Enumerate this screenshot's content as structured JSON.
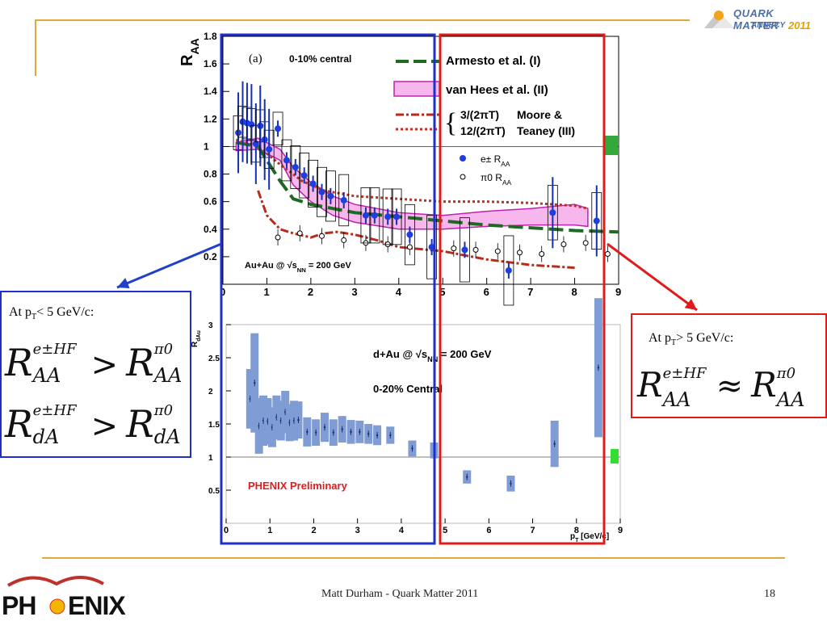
{
  "slide": {
    "footer_text": "Matt Durham - Quark Matter 2011",
    "page_number": "18",
    "logo_top": {
      "line1": "QUARK MATTER",
      "line2": "ANNECY",
      "year": "2011"
    },
    "logo_bottom": {
      "left": "PH",
      "right": "ENIX"
    }
  },
  "left_box": {
    "label": "At p",
    "label_sub": "T",
    "label_rest": "< 5 GeV/c:",
    "eq1": {
      "lhs": "R",
      "lhs_sup": "e±HF",
      "lhs_sub": "AA",
      "op": ">",
      "rhs": "R",
      "rhs_sup": "π0",
      "rhs_sub": "AA"
    },
    "eq2": {
      "lhs": "R",
      "lhs_sup": "e±HF",
      "lhs_sub": "dA",
      "op": ">",
      "rhs": "R",
      "rhs_sup": "π0",
      "rhs_sub": "dA"
    }
  },
  "right_box": {
    "label": "At p",
    "label_sub": "T",
    "label_rest": "> 5 GeV/c:",
    "eq": {
      "lhs": "R",
      "lhs_sup": "e±HF",
      "lhs_sub": "AA",
      "op": "≈",
      "rhs": "R",
      "rhs_sup": "π0",
      "rhs_sub": "AA"
    }
  },
  "colors": {
    "accent_line": "#e0a93b",
    "blue_box": "#1f2fcc",
    "red_box": "#e01b1b",
    "arrow_blue": "#1f3fcc",
    "arrow_red": "#e01b1b"
  },
  "chart_data": [
    {
      "type": "scatter",
      "panel_label": "(a)",
      "centrality": "0-10% central",
      "ylabel": "R",
      "ylabel_sub": "AA",
      "xlim": [
        0,
        9
      ],
      "ylim": [
        0,
        1.8
      ],
      "xticks": [
        "0",
        "1",
        "2",
        "3",
        "4",
        "5",
        "6",
        "7",
        "8",
        "9"
      ],
      "yticks": [
        "0.2",
        "0.4",
        "0.6",
        "0.8",
        "1",
        "1.2",
        "1.4",
        "1.6",
        "1.8"
      ],
      "system_label": "Au+Au @ √s",
      "system_label_sub": "NN",
      "system_label_rest": " = 200 GeV",
      "legend": {
        "armesto": "Armesto et al. (I)",
        "vanhees": "van Hees et al. (II)",
        "moore_a": "3/(2πT)",
        "moore_b": "12/(2πT)",
        "moore_name1": "Moore &",
        "moore_name2": "Teaney (III)",
        "e_raa": "e± R",
        "e_raa_sub": "AA",
        "pi_raa": "π0 R",
        "pi_raa_sub": "AA"
      },
      "series": [
        {
          "name": "e± RAA",
          "x": [
            0.35,
            0.45,
            0.55,
            0.65,
            0.75,
            0.85,
            0.95,
            1.05,
            1.25,
            1.45,
            1.65,
            1.85,
            2.05,
            2.25,
            2.45,
            2.75,
            3.25,
            3.45,
            3.75,
            3.95,
            4.25,
            4.75,
            5.5,
            6.5,
            7.5,
            8.5
          ],
          "y": [
            1.1,
            1.18,
            1.17,
            1.16,
            1.02,
            1.15,
            1.05,
            0.98,
            1.13,
            0.9,
            0.85,
            0.79,
            0.73,
            0.67,
            0.64,
            0.61,
            0.5,
            0.5,
            0.49,
            0.49,
            0.36,
            0.27,
            0.25,
            0.1,
            0.52,
            0.46
          ]
        },
        {
          "name": "π0 RAA",
          "x": [
            1.25,
            1.75,
            2.25,
            2.75,
            3.25,
            3.75,
            4.25,
            4.75,
            5.25,
            5.75,
            6.25,
            6.75,
            7.25,
            7.75,
            8.25,
            8.75
          ],
          "y": [
            0.34,
            0.37,
            0.35,
            0.32,
            0.3,
            0.29,
            0.27,
            0.27,
            0.26,
            0.25,
            0.24,
            0.23,
            0.22,
            0.29,
            0.3,
            0.22
          ]
        },
        {
          "name": "Armesto et al. (I)",
          "x": [
            0.3,
            0.8,
            1.3,
            1.6,
            2.0,
            2.5,
            3.0,
            4.0,
            5.0,
            6.0,
            7.0,
            8.0,
            9.0
          ],
          "y": [
            1.03,
            1.0,
            0.75,
            0.62,
            0.58,
            0.55,
            0.52,
            0.49,
            0.46,
            0.43,
            0.41,
            0.39,
            0.38
          ]
        },
        {
          "name": "3/(2πT)",
          "x": [
            0.8,
            1.0,
            1.3,
            1.6,
            2.0,
            2.3,
            2.6,
            3.0,
            3.5,
            4.0,
            5.0,
            6.0,
            7.0,
            8.0
          ],
          "y": [
            0.68,
            0.5,
            0.4,
            0.37,
            0.34,
            0.37,
            0.38,
            0.36,
            0.32,
            0.27,
            0.24,
            0.18,
            0.14,
            0.12
          ]
        },
        {
          "name": "12/(2πT)",
          "x": [
            0.3,
            0.8,
            1.3,
            1.8,
            2.3,
            3.0,
            4.0,
            5.0,
            6.0,
            7.0,
            8.0,
            8.3
          ],
          "y": [
            1.05,
            1.0,
            0.87,
            0.75,
            0.68,
            0.64,
            0.62,
            0.6,
            0.6,
            0.59,
            0.57,
            0.55
          ]
        },
        {
          "name": "van Hees et al. (II)",
          "x": [
            0.3,
            0.8,
            1.3,
            1.6,
            2.0,
            2.5,
            3.0,
            4.0,
            5.0,
            6.0,
            7.0,
            8.0,
            8.3
          ],
          "y_low": [
            0.97,
            0.98,
            0.9,
            0.72,
            0.6,
            0.5,
            0.45,
            0.4,
            0.4,
            0.42,
            0.43,
            0.43,
            0.42
          ],
          "y_high": [
            1.03,
            1.06,
            0.98,
            0.85,
            0.74,
            0.64,
            0.58,
            0.52,
            0.5,
            0.53,
            0.55,
            0.58,
            0.55
          ]
        }
      ]
    },
    {
      "type": "scatter",
      "ylabel": "R",
      "ylabel_sub": "dAu",
      "xlabel": "p",
      "xlabel_sub": "T",
      "xlabel_rest": " [GeV/c]",
      "xlim": [
        0,
        9
      ],
      "ylim": [
        0,
        3
      ],
      "xticks": [
        "0",
        "1",
        "2",
        "3",
        "4",
        "5",
        "6",
        "7",
        "8",
        "9"
      ],
      "yticks": [
        "0.5",
        "1",
        "1.5",
        "2",
        "2.5",
        "3"
      ],
      "system_label": "d+Au @ √s",
      "system_label_sub": "NN",
      "system_label_rest": " = 200 GeV",
      "centrality": "0-20% Central",
      "preliminary": "PHENIX Preliminary",
      "series": [
        {
          "name": "e± RdAu",
          "x": [
            0.55,
            0.65,
            0.75,
            0.85,
            0.95,
            1.05,
            1.15,
            1.25,
            1.35,
            1.45,
            1.55,
            1.65,
            1.85,
            2.05,
            2.25,
            2.45,
            2.65,
            2.85,
            3.05,
            3.25,
            3.45,
            3.75,
            4.25,
            4.75,
            5.5,
            6.5,
            7.5,
            8.5
          ],
          "y": [
            1.88,
            2.12,
            1.47,
            1.55,
            1.54,
            1.45,
            1.6,
            1.55,
            1.68,
            1.52,
            1.55,
            1.56,
            1.38,
            1.37,
            1.45,
            1.37,
            1.42,
            1.38,
            1.38,
            1.35,
            1.33,
            1.33,
            1.13,
            1.1,
            0.7,
            0.6,
            1.2,
            2.35
          ],
          "sys": [
            0.45,
            0.75,
            0.42,
            0.38,
            0.35,
            0.3,
            0.33,
            0.3,
            0.32,
            0.28,
            0.3,
            0.28,
            0.22,
            0.2,
            0.22,
            0.2,
            0.2,
            0.18,
            0.17,
            0.15,
            0.15,
            0.13,
            0.12,
            0.12,
            0.1,
            0.12,
            0.35,
            1.05
          ]
        }
      ]
    }
  ]
}
